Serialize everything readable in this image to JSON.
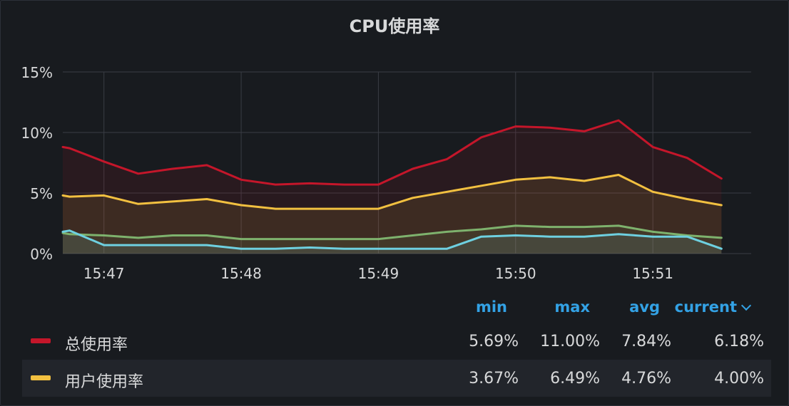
{
  "panel": {
    "title": "CPU使用率"
  },
  "chart_data": {
    "type": "line",
    "title": "CPU使用率",
    "y_ticks": [
      "15%",
      "10%",
      "5%",
      "0%"
    ],
    "y_tick_values": [
      15,
      10,
      5,
      0
    ],
    "ylim": [
      0,
      15
    ],
    "x_ticks": [
      "15:47",
      "15:48",
      "15:49",
      "15:50",
      "15:51"
    ],
    "x_tick_values": [
      "15:47:00",
      "15:48:00",
      "15:49:00",
      "15:50:00",
      "15:51:00"
    ],
    "xlim": [
      "15:46:42",
      "15:51:43"
    ],
    "grid": true,
    "fill": true,
    "x": [
      "15:46:42",
      "15:46:45",
      "15:47:00",
      "15:47:15",
      "15:47:30",
      "15:47:45",
      "15:48:00",
      "15:48:15",
      "15:48:30",
      "15:48:45",
      "15:49:00",
      "15:49:15",
      "15:49:30",
      "15:49:45",
      "15:50:00",
      "15:50:15",
      "15:50:30",
      "15:50:45",
      "15:51:00",
      "15:51:15",
      "15:51:30"
    ],
    "series": [
      {
        "name": "总使用率",
        "color": "#c4162a",
        "values": [
          8.8,
          8.7,
          7.6,
          6.6,
          7.0,
          7.3,
          6.1,
          5.7,
          5.8,
          5.7,
          5.7,
          7.0,
          7.8,
          9.6,
          10.5,
          10.4,
          10.1,
          11.0,
          8.8,
          7.9,
          6.2
        ]
      },
      {
        "name": "用户使用率",
        "color": "#f2c040",
        "values": [
          4.8,
          4.7,
          4.8,
          4.1,
          4.3,
          4.5,
          4.0,
          3.7,
          3.7,
          3.7,
          3.7,
          4.6,
          5.1,
          5.6,
          6.1,
          6.3,
          6.0,
          6.5,
          5.1,
          4.5,
          4.0
        ]
      },
      {
        "color": "#7eb26d",
        "values": [
          1.7,
          1.6,
          1.5,
          1.3,
          1.5,
          1.5,
          1.2,
          1.2,
          1.2,
          1.2,
          1.2,
          1.5,
          1.8,
          2.0,
          2.3,
          2.2,
          2.2,
          2.3,
          1.8,
          1.5,
          1.3
        ]
      },
      {
        "color": "#6ed0e0",
        "values": [
          1.8,
          1.9,
          0.7,
          0.7,
          0.7,
          0.7,
          0.4,
          0.4,
          0.5,
          0.4,
          0.4,
          0.4,
          0.4,
          1.4,
          1.5,
          1.4,
          1.4,
          1.6,
          1.4,
          1.4,
          0.4
        ]
      }
    ]
  },
  "legend": {
    "headers": {
      "min": "min",
      "max": "max",
      "avg": "avg",
      "current": "current"
    },
    "rows": [
      {
        "name": "总使用率",
        "color": "#c4162a",
        "min": "5.69%",
        "max": "11.00%",
        "avg": "7.84%",
        "current": "6.18%"
      },
      {
        "name": "用户使用率",
        "color": "#f2c040",
        "min": "3.67%",
        "max": "6.49%",
        "avg": "4.76%",
        "current": "4.00%"
      }
    ]
  }
}
